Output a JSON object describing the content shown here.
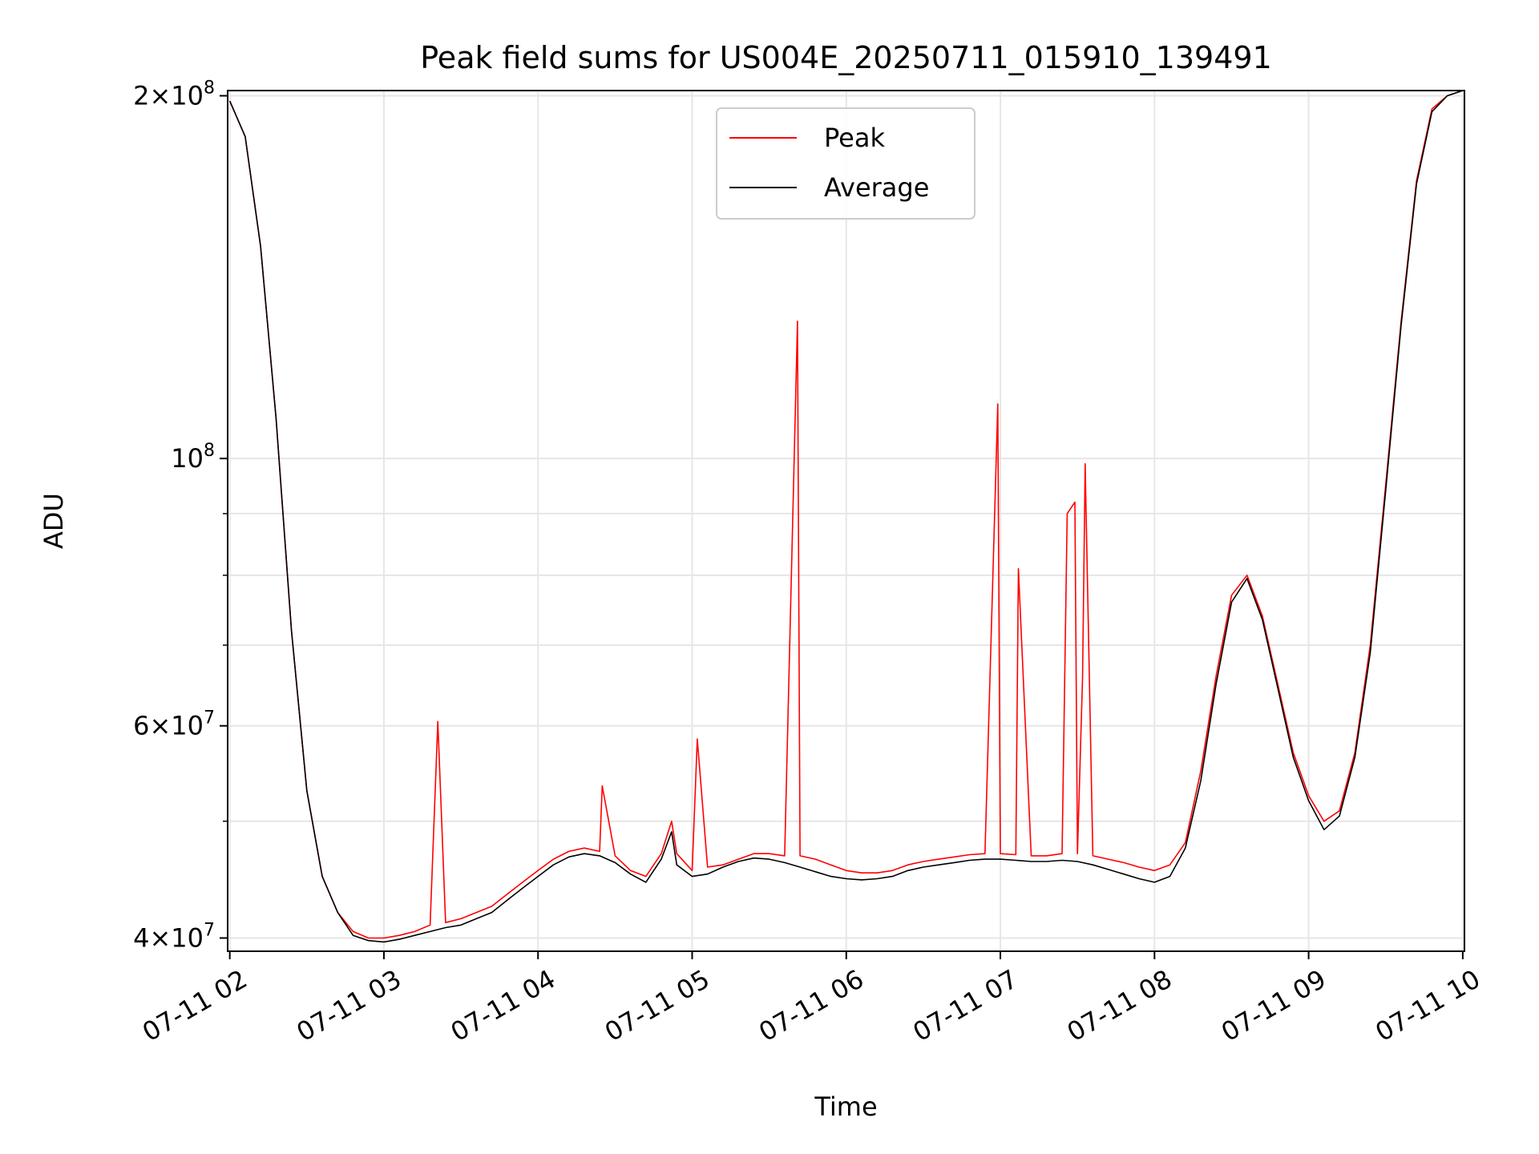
{
  "chart_data": {
    "type": "line",
    "title": "Peak field sums for US004E_20250711_015910_139491",
    "xlabel": "Time",
    "ylabel": "ADU",
    "y_scale": "log",
    "ylim": [
      39000000,
      202000000
    ],
    "xlim": [
      "2025-07-11T01:59:10",
      "2025-07-11T10:00:40"
    ],
    "grid": true,
    "legend_position": "upper center",
    "x_ticks": [
      {
        "t": "2025-07-11T02:00",
        "label": "07-11 02"
      },
      {
        "t": "2025-07-11T03:00",
        "label": "07-11 03"
      },
      {
        "t": "2025-07-11T04:00",
        "label": "07-11 04"
      },
      {
        "t": "2025-07-11T05:00",
        "label": "07-11 05"
      },
      {
        "t": "2025-07-11T06:00",
        "label": "07-11 06"
      },
      {
        "t": "2025-07-11T07:00",
        "label": "07-11 07"
      },
      {
        "t": "2025-07-11T08:00",
        "label": "07-11 08"
      },
      {
        "t": "2025-07-11T09:00",
        "label": "07-11 09"
      },
      {
        "t": "2025-07-11T10:00",
        "label": "07-11 10"
      }
    ],
    "y_ticks": [
      {
        "value": 40000000,
        "mantissa": "4",
        "base": "10",
        "exp": "7"
      },
      {
        "value": 60000000,
        "mantissa": "6",
        "base": "10",
        "exp": "7"
      },
      {
        "value": 100000000,
        "mantissa": "",
        "base": "10",
        "exp": "8"
      },
      {
        "value": 200000000,
        "mantissa": "2",
        "base": "10",
        "exp": "8"
      }
    ],
    "y_minor_ticks": [
      50000000,
      70000000,
      80000000,
      90000000
    ],
    "series": [
      {
        "name": "Peak",
        "color": "#ff0000",
        "x": [
          "2025-07-11T02:00",
          "2025-07-11T02:06",
          "2025-07-11T02:12",
          "2025-07-11T02:18",
          "2025-07-11T02:24",
          "2025-07-11T02:30",
          "2025-07-11T02:36",
          "2025-07-11T02:42",
          "2025-07-11T02:48",
          "2025-07-11T02:54",
          "2025-07-11T03:00",
          "2025-07-11T03:06",
          "2025-07-11T03:12",
          "2025-07-11T03:18",
          "2025-07-11T03:21",
          "2025-07-11T03:24",
          "2025-07-11T03:30",
          "2025-07-11T03:36",
          "2025-07-11T03:42",
          "2025-07-11T03:48",
          "2025-07-11T03:54",
          "2025-07-11T04:00",
          "2025-07-11T04:06",
          "2025-07-11T04:12",
          "2025-07-11T04:18",
          "2025-07-11T04:24",
          "2025-07-11T04:25",
          "2025-07-11T04:30",
          "2025-07-11T04:36",
          "2025-07-11T04:42",
          "2025-07-11T04:48",
          "2025-07-11T04:52",
          "2025-07-11T04:54",
          "2025-07-11T05:00",
          "2025-07-11T05:02",
          "2025-07-11T05:06",
          "2025-07-11T05:12",
          "2025-07-11T05:18",
          "2025-07-11T05:24",
          "2025-07-11T05:30",
          "2025-07-11T05:36",
          "2025-07-11T05:41",
          "2025-07-11T05:42",
          "2025-07-11T05:48",
          "2025-07-11T05:54",
          "2025-07-11T06:00",
          "2025-07-11T06:06",
          "2025-07-11T06:12",
          "2025-07-11T06:18",
          "2025-07-11T06:24",
          "2025-07-11T06:30",
          "2025-07-11T06:36",
          "2025-07-11T06:42",
          "2025-07-11T06:48",
          "2025-07-11T06:54",
          "2025-07-11T06:59",
          "2025-07-11T07:00",
          "2025-07-11T07:06",
          "2025-07-11T07:07",
          "2025-07-11T07:12",
          "2025-07-11T07:18",
          "2025-07-11T07:24",
          "2025-07-11T07:26",
          "2025-07-11T07:29",
          "2025-07-11T07:30",
          "2025-07-11T07:32",
          "2025-07-11T07:33",
          "2025-07-11T07:36",
          "2025-07-11T07:42",
          "2025-07-11T07:48",
          "2025-07-11T07:54",
          "2025-07-11T08:00",
          "2025-07-11T08:06",
          "2025-07-11T08:12",
          "2025-07-11T08:18",
          "2025-07-11T08:24",
          "2025-07-11T08:30",
          "2025-07-11T08:36",
          "2025-07-11T08:42",
          "2025-07-11T08:48",
          "2025-07-11T08:54",
          "2025-07-11T09:00",
          "2025-07-11T09:06",
          "2025-07-11T09:12",
          "2025-07-11T09:18",
          "2025-07-11T09:24",
          "2025-07-11T09:30",
          "2025-07-11T09:36",
          "2025-07-11T09:42",
          "2025-07-11T09:48",
          "2025-07-11T09:54",
          "2025-07-11T10:00"
        ],
        "y": [
          198000000,
          185000000,
          150000000,
          108000000,
          72000000,
          53000000,
          45000000,
          42000000,
          40500000,
          40000000,
          40000000,
          40200000,
          40500000,
          41000000,
          60500000,
          41200000,
          41500000,
          42000000,
          42500000,
          43500000,
          44500000,
          45500000,
          46500000,
          47200000,
          47500000,
          47200000,
          53500000,
          46800000,
          45500000,
          45000000,
          47000000,
          50000000,
          47000000,
          45500000,
          58500000,
          45800000,
          46000000,
          46500000,
          47000000,
          47000000,
          46800000,
          130000000,
          46800000,
          46500000,
          46000000,
          45500000,
          45300000,
          45300000,
          45500000,
          46000000,
          46300000,
          46500000,
          46700000,
          46900000,
          47000000,
          111000000,
          47000000,
          46900000,
          81000000,
          46800000,
          46800000,
          47000000,
          90000000,
          92000000,
          47000000,
          66000000,
          99000000,
          46800000,
          46500000,
          46200000,
          45800000,
          45500000,
          46000000,
          48000000,
          55000000,
          66000000,
          77000000,
          80000000,
          74000000,
          65000000,
          57000000,
          52500000,
          50000000,
          51000000,
          57000000,
          70000000,
          95000000,
          130000000,
          170000000,
          195000000,
          200000000,
          202000000
        ]
      },
      {
        "name": "Average",
        "color": "#000000",
        "x": [
          "2025-07-11T02:00",
          "2025-07-11T02:06",
          "2025-07-11T02:12",
          "2025-07-11T02:18",
          "2025-07-11T02:24",
          "2025-07-11T02:30",
          "2025-07-11T02:36",
          "2025-07-11T02:42",
          "2025-07-11T02:48",
          "2025-07-11T02:54",
          "2025-07-11T03:00",
          "2025-07-11T03:06",
          "2025-07-11T03:12",
          "2025-07-11T03:18",
          "2025-07-11T03:24",
          "2025-07-11T03:30",
          "2025-07-11T03:36",
          "2025-07-11T03:42",
          "2025-07-11T03:48",
          "2025-07-11T03:54",
          "2025-07-11T04:00",
          "2025-07-11T04:06",
          "2025-07-11T04:12",
          "2025-07-11T04:18",
          "2025-07-11T04:24",
          "2025-07-11T04:30",
          "2025-07-11T04:36",
          "2025-07-11T04:42",
          "2025-07-11T04:48",
          "2025-07-11T04:52",
          "2025-07-11T04:54",
          "2025-07-11T05:00",
          "2025-07-11T05:06",
          "2025-07-11T05:12",
          "2025-07-11T05:18",
          "2025-07-11T05:24",
          "2025-07-11T05:30",
          "2025-07-11T05:36",
          "2025-07-11T05:42",
          "2025-07-11T05:48",
          "2025-07-11T05:54",
          "2025-07-11T06:00",
          "2025-07-11T06:06",
          "2025-07-11T06:12",
          "2025-07-11T06:18",
          "2025-07-11T06:24",
          "2025-07-11T06:30",
          "2025-07-11T06:36",
          "2025-07-11T06:42",
          "2025-07-11T06:48",
          "2025-07-11T06:54",
          "2025-07-11T07:00",
          "2025-07-11T07:06",
          "2025-07-11T07:12",
          "2025-07-11T07:18",
          "2025-07-11T07:24",
          "2025-07-11T07:30",
          "2025-07-11T07:36",
          "2025-07-11T07:42",
          "2025-07-11T07:48",
          "2025-07-11T07:54",
          "2025-07-11T08:00",
          "2025-07-11T08:06",
          "2025-07-11T08:12",
          "2025-07-11T08:18",
          "2025-07-11T08:24",
          "2025-07-11T08:30",
          "2025-07-11T08:36",
          "2025-07-11T08:42",
          "2025-07-11T08:48",
          "2025-07-11T08:54",
          "2025-07-11T09:00",
          "2025-07-11T09:06",
          "2025-07-11T09:12",
          "2025-07-11T09:18",
          "2025-07-11T09:24",
          "2025-07-11T09:30",
          "2025-07-11T09:36",
          "2025-07-11T09:42",
          "2025-07-11T09:48",
          "2025-07-11T09:54",
          "2025-07-11T10:00"
        ],
        "y": [
          198000000,
          185000000,
          150000000,
          108000000,
          72000000,
          53000000,
          45000000,
          42000000,
          40200000,
          39800000,
          39700000,
          39900000,
          40200000,
          40500000,
          40800000,
          41000000,
          41500000,
          42000000,
          43000000,
          44000000,
          45000000,
          46000000,
          46700000,
          47000000,
          46800000,
          46200000,
          45200000,
          44500000,
          46500000,
          49000000,
          46000000,
          45000000,
          45200000,
          45800000,
          46300000,
          46600000,
          46500000,
          46200000,
          45800000,
          45400000,
          45000000,
          44800000,
          44700000,
          44800000,
          45000000,
          45500000,
          45800000,
          46000000,
          46200000,
          46400000,
          46500000,
          46500000,
          46400000,
          46300000,
          46300000,
          46400000,
          46300000,
          46000000,
          45600000,
          45200000,
          44800000,
          44500000,
          45000000,
          47500000,
          54000000,
          65000000,
          76000000,
          79500000,
          73500000,
          64500000,
          56500000,
          52000000,
          49200000,
          50500000,
          56500000,
          69000000,
          94000000,
          129000000,
          169000000,
          194000000,
          200000000,
          202000000
        ]
      }
    ]
  }
}
